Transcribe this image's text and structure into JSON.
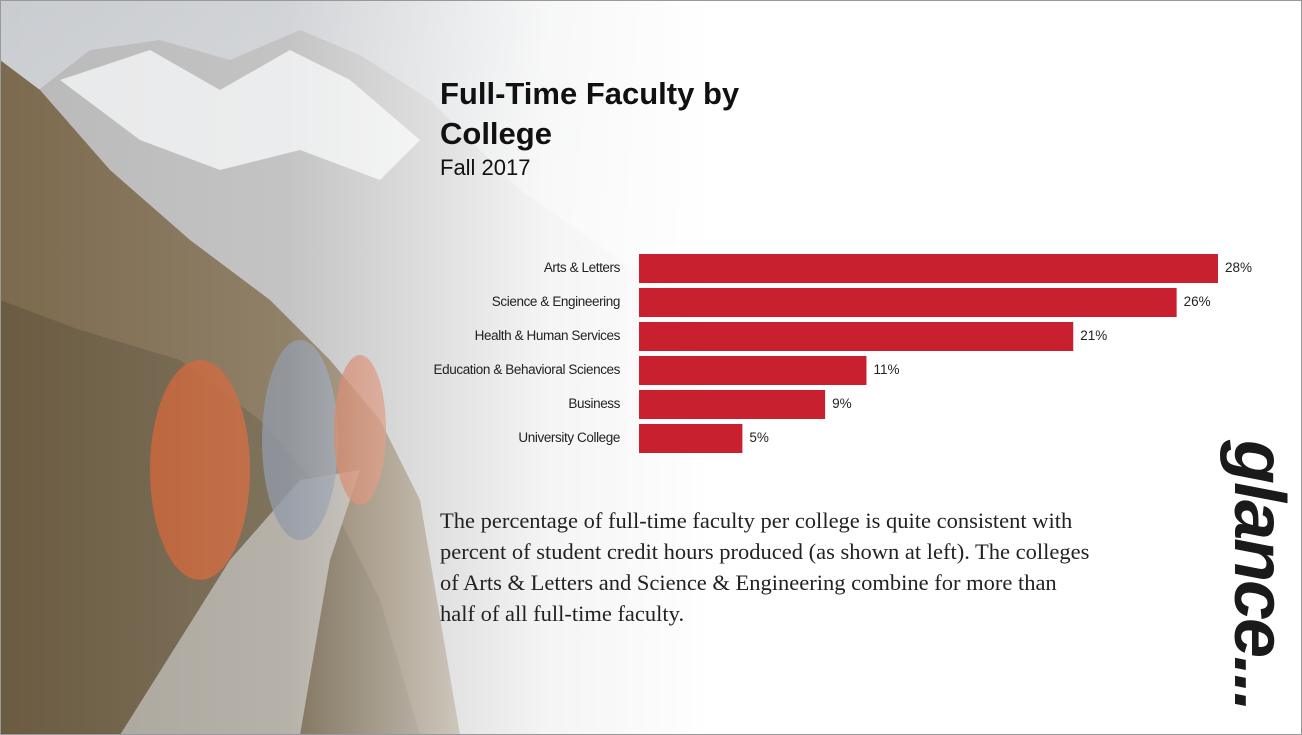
{
  "chart_data": {
    "type": "bar",
    "orientation": "horizontal",
    "title": "Full-Time Faculty by College",
    "subtitle": "Fall 2017",
    "categories": [
      "Arts & Letters",
      "Science & Engineering",
      "Health & Human Services",
      "Education & Behavioral Sciences",
      "Business",
      "University College"
    ],
    "values": [
      28,
      26,
      21,
      11,
      9,
      5
    ],
    "value_labels": [
      "28%",
      "26%",
      "21%",
      "11%",
      "9%",
      "5%"
    ],
    "color": "#c8202f",
    "annotation": "The percentage of full-time faculty per college is quite consistent with percent of student credit hours produced (as shown at left).  The colleges of Arts & Letters and Science & Engineering combine for more than half of all full-time faculty."
  },
  "side_text": "glance..."
}
